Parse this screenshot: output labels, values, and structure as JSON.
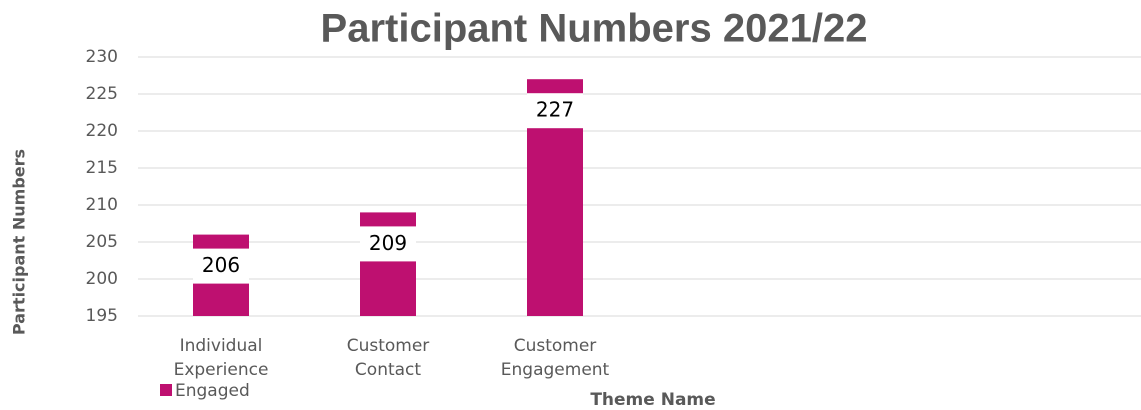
{
  "chart_data": {
    "type": "bar",
    "title": "Participant Numbers 2021/22",
    "categories": [
      "Individual Experience",
      "Customer Contact",
      "Customer Engagement"
    ],
    "series": [
      {
        "name": "Engaged",
        "color": "#be1070",
        "values": [
          206,
          209,
          227
        ]
      }
    ],
    "ylim": [
      195,
      230
    ],
    "yticks": [
      195,
      200,
      205,
      210,
      215,
      220,
      225,
      230
    ],
    "grid": true,
    "legend": "bottom-left",
    "x_label": "Theme Name",
    "y_label": "Participant Numbers"
  }
}
